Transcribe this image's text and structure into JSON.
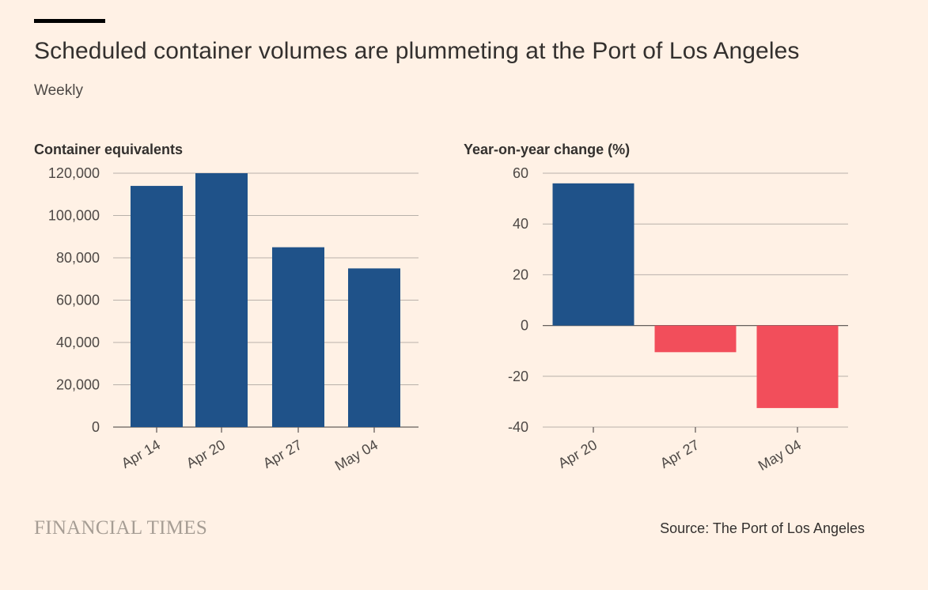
{
  "header": {
    "title": "Scheduled container volumes are plummeting at the Port of Los Angeles",
    "subtitle": "Weekly"
  },
  "footer": {
    "brand": "FINANCIAL TIMES",
    "source": "Source: The Port of Los Angeles"
  },
  "colors": {
    "positive": "#1f5289",
    "negative": "#f24e5b",
    "grid": "#b8b1aa",
    "axis": "#66605c",
    "text": "#33302e",
    "background": "#fff1e5"
  },
  "chart_data": [
    {
      "type": "bar",
      "ylabel": "Container equivalents",
      "categories": [
        "Apr 14",
        "Apr 20",
        "Apr 27",
        "May 04"
      ],
      "values": [
        114000,
        120000,
        85000,
        75000
      ],
      "ylim": [
        0,
        120000
      ],
      "yticks": [
        0,
        20000,
        40000,
        60000,
        80000,
        100000,
        120000
      ],
      "ytick_labels": [
        "0",
        "20,000",
        "40,000",
        "60,000",
        "80,000",
        "100,000",
        "120,000"
      ],
      "grid": true
    },
    {
      "type": "bar",
      "ylabel": "Year-on-year change (%)",
      "categories": [
        "Apr 20",
        "Apr 27",
        "May 04"
      ],
      "values": [
        56,
        -10.5,
        -32.5
      ],
      "ylim": [
        -40,
        60
      ],
      "yticks": [
        -40,
        -20,
        0,
        20,
        40,
        60
      ],
      "ytick_labels": [
        "-40",
        "-20",
        "0",
        "20",
        "40",
        "60"
      ],
      "grid": true
    }
  ]
}
